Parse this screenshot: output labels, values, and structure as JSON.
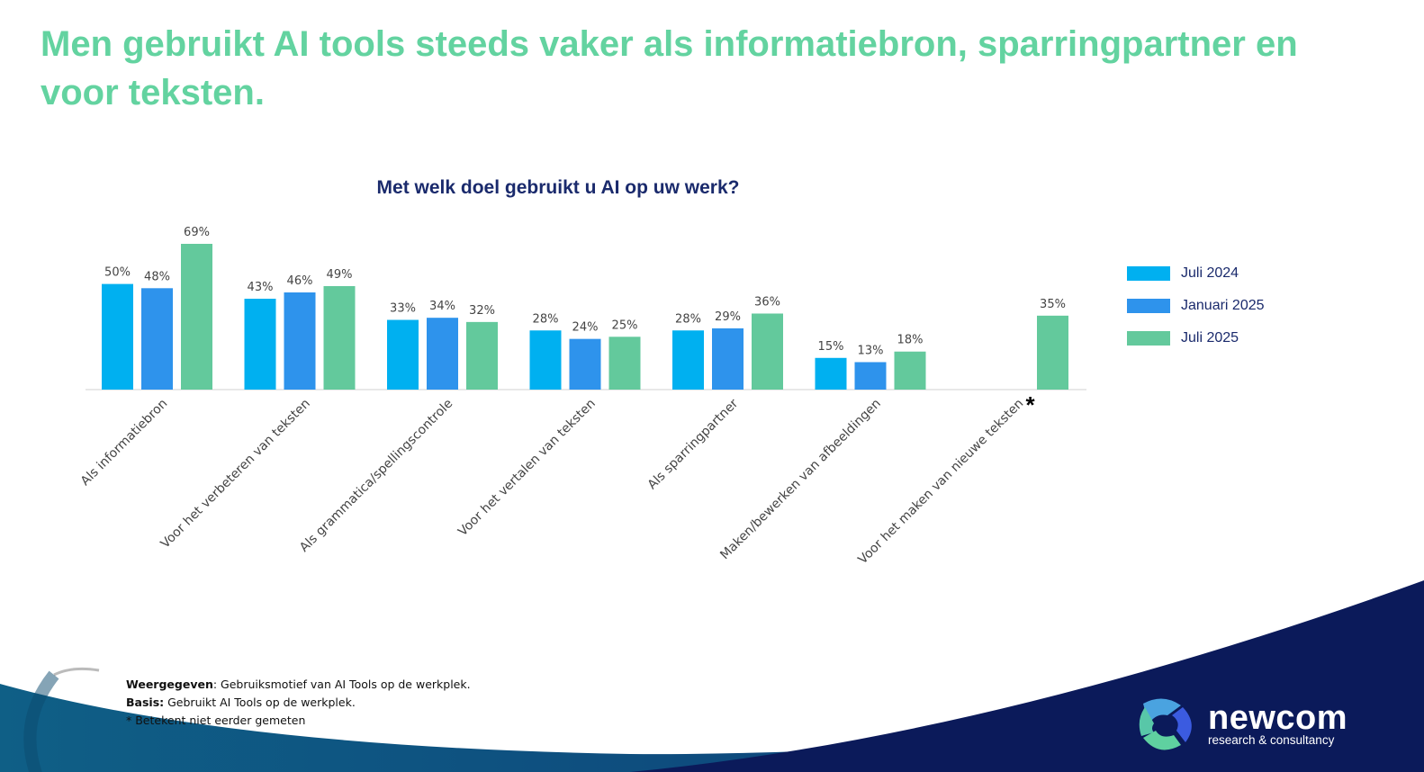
{
  "slide_title": "Men gebruikt AI tools steeds vaker als informatiebron,  sparringpartner en voor teksten.",
  "chart_data": {
    "type": "bar",
    "title": "Met welk doel gebruikt u AI op uw werk?",
    "categories": [
      "Als informatiebron",
      "Voor het verbeteren van teksten",
      "Als grammatica/spellingscontrole",
      "Voor het vertalen van teksten",
      "Als sparringpartner",
      "Maken/bewerken van afbeeldingen",
      "Voor het maken van nieuwe teksten"
    ],
    "category_markers": [
      "",
      "",
      "",
      "",
      "",
      "",
      "*"
    ],
    "series": [
      {
        "name": "Juli 2024",
        "color": "#00b0f0",
        "values": [
          50,
          43,
          33,
          28,
          28,
          15,
          null
        ]
      },
      {
        "name": "Januari 2025",
        "color": "#2e93ec",
        "values": [
          48,
          46,
          34,
          24,
          29,
          13,
          null
        ]
      },
      {
        "name": "Juli 2025",
        "color": "#63c99c",
        "values": [
          69,
          49,
          32,
          25,
          36,
          18,
          35
        ]
      }
    ],
    "ylim": [
      0,
      75
    ],
    "value_format": "percent",
    "legend_position": "right",
    "grid": false
  },
  "notes": {
    "shown_label": "Weergegeven",
    "shown_text": ": Gebruiksmotief van AI Tools op de werkplek.",
    "basis_label": "Basis:",
    "basis_text": " Gebruikt AI Tools op de werkplek.",
    "asterisk": "* Betekent niet eerder gemeten"
  },
  "logo": {
    "name": "newcom",
    "tagline": "research & consultancy"
  }
}
